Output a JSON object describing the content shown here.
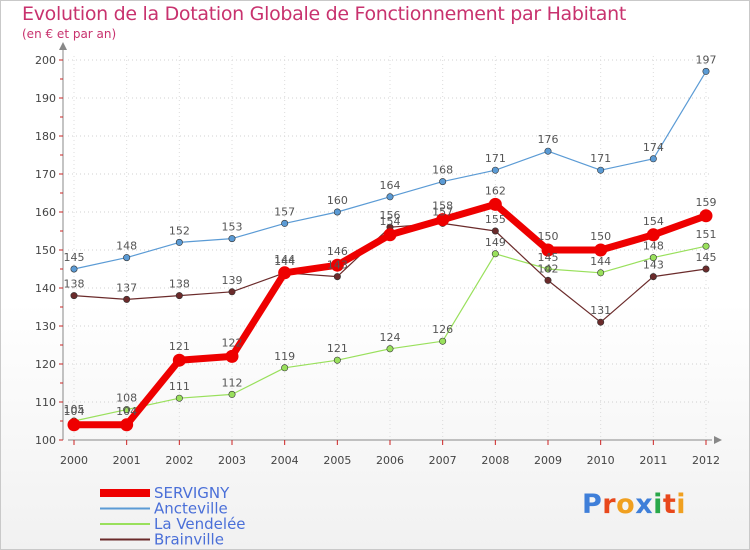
{
  "chart_data": {
    "type": "line",
    "title": "Evolution de la Dotation Globale de Fonctionnement par Habitant",
    "subtitle": "(en € et par an)",
    "xlabel": "",
    "ylabel": "",
    "categories": [
      "2000",
      "2001",
      "2002",
      "2003",
      "2004",
      "2005",
      "2006",
      "2007",
      "2008",
      "2009",
      "2010",
      "2011",
      "2012"
    ],
    "ylim": [
      100,
      200
    ],
    "yticks": [
      100,
      110,
      120,
      130,
      140,
      150,
      160,
      170,
      180,
      190,
      200
    ],
    "grid": "dotted horizontal",
    "legend_position": "bottom-left",
    "series": [
      {
        "name": "Ancteville",
        "color": "#5b9bd5",
        "values": [
          145,
          148,
          152,
          153,
          157,
          160,
          164,
          168,
          171,
          176,
          171,
          174,
          197
        ]
      },
      {
        "name": "La Vendelée",
        "color": "#99e05c",
        "values": [
          105,
          108,
          111,
          112,
          119,
          121,
          124,
          126,
          149,
          145,
          144,
          148,
          151
        ]
      },
      {
        "name": "Brainville",
        "color": "#6b2b2b",
        "values": [
          138,
          137,
          138,
          139,
          144,
          143,
          156,
          157,
          155,
          142,
          131,
          143,
          145
        ]
      },
      {
        "name": "SERVIGNY",
        "color": "#ee0000",
        "values": [
          104,
          104,
          121,
          122,
          144,
          146,
          154,
          158,
          162,
          150,
          150,
          154,
          159
        ]
      }
    ],
    "legend": [
      "SERVIGNY",
      "Ancteville",
      "La Vendelée",
      "Brainville"
    ],
    "logo_text": "Proxiti"
  }
}
